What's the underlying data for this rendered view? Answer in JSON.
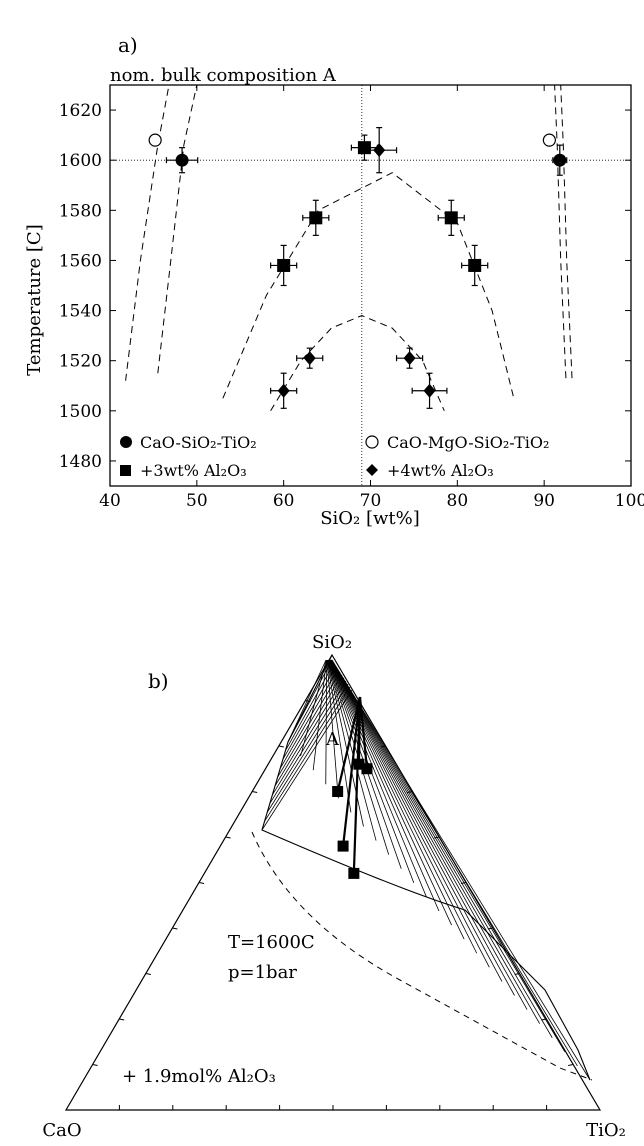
{
  "panel_a": {
    "label": "a)",
    "title": "nom. bulk composition A",
    "ylabel": "Temperature [C]",
    "xlabel": "SiO₂ [wt%]"
  },
  "legend": {
    "cms_t": "CaO-SiO₂-TiO₂",
    "cmst": "CaO-MgO-SiO₂-TiO₂",
    "al3": "+3wt% Al₂O₃",
    "al4": "+4wt% Al₂O₃"
  },
  "panel_b": {
    "label": "b)",
    "apex_top": "SiO₂",
    "apex_left": "CaO",
    "apex_right": "TiO₂",
    "bulk_label": "A",
    "temperature": "T=1600C",
    "pressure": "p=1bar",
    "additive": "+ 1.9mol% Al₂O₃"
  },
  "chart_data": [
    {
      "type": "scatter",
      "title": "nom. bulk composition A",
      "xlabel": "SiO₂ [wt%]",
      "ylabel": "Temperature [C]",
      "xlim": [
        40,
        100
      ],
      "ylim": [
        1470,
        1630
      ],
      "x_ticks": [
        40,
        50,
        60,
        70,
        80,
        90,
        100
      ],
      "y_ticks": [
        1480,
        1500,
        1520,
        1540,
        1560,
        1580,
        1600,
        1620
      ],
      "reference_lines": {
        "x": 69,
        "y": 1600
      },
      "legend_position": "bottom",
      "series": [
        {
          "name": "CaO-SiO₂-TiO₂",
          "marker": "filled-circle",
          "points": [
            {
              "x": 48.3,
              "y": 1600,
              "xerr": 1.8,
              "yerr": 5
            },
            {
              "x": 91.8,
              "y": 1600,
              "xerr": 0.8,
              "yerr": 6
            }
          ]
        },
        {
          "name": "CaO-MgO-SiO₂-TiO₂",
          "marker": "open-circle",
          "points": [
            {
              "x": 45.2,
              "y": 1608
            },
            {
              "x": 90.6,
              "y": 1608
            }
          ]
        },
        {
          "name": "+3wt% Al₂O₃",
          "marker": "filled-square",
          "points": [
            {
              "x": 69.3,
              "y": 1605,
              "xerr": 1.5,
              "yerr": 5
            },
            {
              "x": 63.7,
              "y": 1577,
              "xerr": 1.5,
              "yerr": 7
            },
            {
              "x": 79.3,
              "y": 1577,
              "xerr": 1.5,
              "yerr": 7
            },
            {
              "x": 60.0,
              "y": 1558,
              "xerr": 1.5,
              "yerr": 8
            },
            {
              "x": 82.0,
              "y": 1558,
              "xerr": 1.5,
              "yerr": 8
            }
          ]
        },
        {
          "name": "+4wt% Al₂O₃",
          "marker": "filled-diamond",
          "points": [
            {
              "x": 71.0,
              "y": 1604,
              "xerr": 2,
              "yerr": 9
            },
            {
              "x": 63.0,
              "y": 1521,
              "xerr": 1.5,
              "yerr": 4
            },
            {
              "x": 74.5,
              "y": 1521,
              "xerr": 1.5,
              "yerr": 4
            },
            {
              "x": 60.0,
              "y": 1508,
              "xerr": 1.5,
              "yerr": 7
            },
            {
              "x": 76.8,
              "y": 1508,
              "xerr": 2,
              "yerr": 7
            }
          ]
        }
      ],
      "dashed_curves": [
        {
          "x": [
            41.8,
            43.5,
            45.5,
            46.8
          ],
          "y": [
            1512,
            1560,
            1606,
            1630
          ]
        },
        {
          "x": [
            45.5,
            47.0,
            48.5,
            50.0
          ],
          "y": [
            1515,
            1560,
            1606,
            1630
          ]
        },
        {
          "x": [
            92.5,
            91.9,
            91.5,
            91.2
          ],
          "y": [
            1513,
            1560,
            1606,
            1630
          ]
        },
        {
          "x": [
            93.2,
            92.6,
            92.2,
            91.9
          ],
          "y": [
            1513,
            1560,
            1606,
            1630
          ]
        },
        {
          "x": [
            53.0,
            58.0,
            64.0,
            72.5,
            80.0,
            84.0,
            86.5
          ],
          "y": [
            1505,
            1546,
            1580,
            1595,
            1575,
            1540,
            1505
          ]
        },
        {
          "x": [
            58.5,
            62.0,
            65.5,
            69.0,
            72.5,
            76.0,
            78.5
          ],
          "y": [
            1500,
            1520,
            1533,
            1538,
            1533,
            1520,
            1500
          ]
        }
      ]
    },
    {
      "type": "ternary",
      "corners": [
        "CaO",
        "SiO₂",
        "TiO₂"
      ],
      "temperature": "T=1600C",
      "pressure": "p=1bar",
      "additive": "+ 1.9mol% Al₂O₃",
      "bulk_composition_label": "A",
      "points_SiO2_TiO2": [
        [
          0.76,
          0.17
        ],
        [
          0.75,
          0.19
        ],
        [
          0.7,
          0.16
        ],
        [
          0.58,
          0.23
        ],
        [
          0.52,
          0.28
        ]
      ]
    }
  ]
}
